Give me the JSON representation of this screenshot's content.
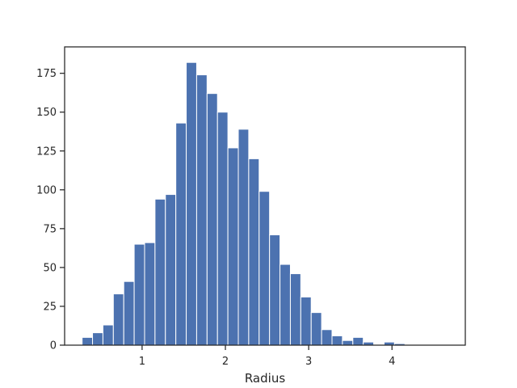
{
  "chart_data": {
    "type": "bar",
    "title": "",
    "xlabel": "Radius",
    "ylabel": "",
    "xlim": [
      0.07,
      4.88
    ],
    "ylim": [
      0,
      192
    ],
    "xticks": [
      1,
      2,
      3,
      4
    ],
    "xtick_labels": [
      "1",
      "2",
      "3",
      "4"
    ],
    "yticks": [
      0,
      25,
      50,
      75,
      100,
      125,
      150,
      175
    ],
    "ytick_labels": [
      "0",
      "25",
      "50",
      "75",
      "100",
      "125",
      "150",
      "175"
    ],
    "grid": false,
    "legend": "none",
    "bar_color": "#4c72b0",
    "series": [
      {
        "bins": [
          [
            0.28,
            0.405
          ],
          [
            0.405,
            0.53
          ],
          [
            0.53,
            0.655
          ],
          [
            0.655,
            0.78
          ],
          [
            0.78,
            0.905
          ],
          [
            0.905,
            1.03
          ],
          [
            1.03,
            1.155
          ],
          [
            1.155,
            1.28
          ],
          [
            1.28,
            1.405
          ],
          [
            1.405,
            1.53
          ],
          [
            1.53,
            1.655
          ],
          [
            1.655,
            1.78
          ],
          [
            1.78,
            1.905
          ],
          [
            1.905,
            2.03
          ],
          [
            2.03,
            2.155
          ],
          [
            2.155,
            2.28
          ],
          [
            2.28,
            2.405
          ],
          [
            2.405,
            2.53
          ],
          [
            2.53,
            2.655
          ],
          [
            2.655,
            2.78
          ],
          [
            2.78,
            2.905
          ],
          [
            2.905,
            3.03
          ],
          [
            3.03,
            3.155
          ],
          [
            3.155,
            3.28
          ],
          [
            3.28,
            3.405
          ],
          [
            3.405,
            3.53
          ],
          [
            3.53,
            3.655
          ],
          [
            3.655,
            3.78
          ],
          [
            3.78,
            3.905
          ],
          [
            3.905,
            4.03
          ],
          [
            4.03,
            4.155
          ],
          [
            4.155,
            4.28
          ],
          [
            4.28,
            4.405
          ],
          [
            4.405,
            4.53
          ],
          [
            4.53,
            4.655
          ]
        ],
        "values": [
          5,
          8,
          13,
          33,
          41,
          65,
          66,
          94,
          97,
          143,
          182,
          174,
          162,
          150,
          127,
          139,
          120,
          99,
          71,
          52,
          46,
          31,
          21,
          10,
          6,
          3,
          5,
          2,
          0,
          2,
          1,
          0,
          0,
          0,
          0
        ]
      }
    ]
  }
}
